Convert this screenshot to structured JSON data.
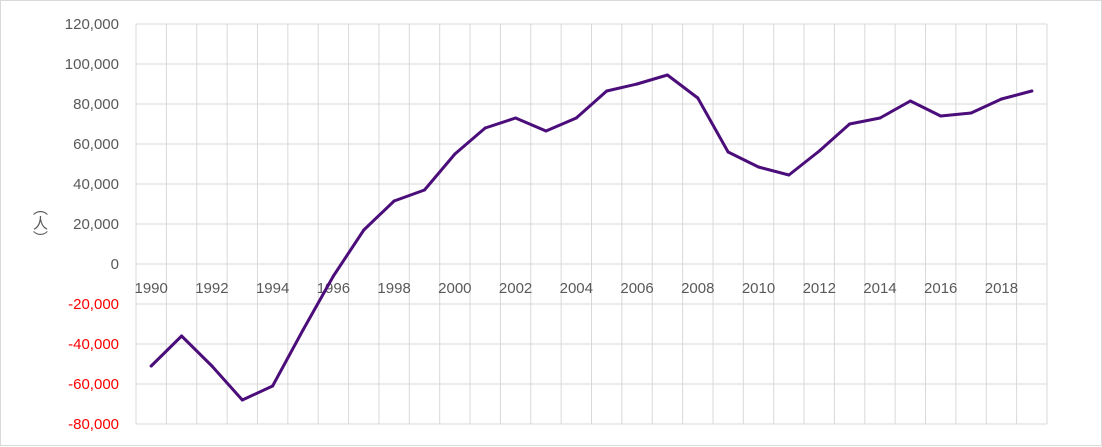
{
  "chart_data": {
    "type": "line",
    "title": "",
    "xlabel": "",
    "ylabel": "（人）",
    "x": [
      1990,
      1991,
      1992,
      1993,
      1994,
      1995,
      1996,
      1997,
      1998,
      1999,
      2000,
      2001,
      2002,
      2003,
      2004,
      2005,
      2006,
      2007,
      2008,
      2009,
      2010,
      2011,
      2012,
      2013,
      2014,
      2015,
      2016,
      2017,
      2018,
      2019
    ],
    "series": [
      {
        "values": [
          -51000,
          -36000,
          -51000,
          -68000,
          -61000,
          -33000,
          -6000,
          17000,
          31500,
          37000,
          55000,
          68000,
          73000,
          66500,
          73000,
          86500,
          90000,
          94500,
          83000,
          56000,
          48500,
          44500,
          56500,
          70000,
          73000,
          81500,
          74000,
          75500,
          82500,
          86500
        ],
        "color": "#4b0d7a"
      }
    ],
    "ylim": [
      -80000,
      120000
    ],
    "yticks": [
      120000,
      100000,
      80000,
      60000,
      40000,
      20000,
      0,
      -20000,
      -40000,
      -60000,
      -80000
    ],
    "ytick_labels": [
      "120,000",
      "100,000",
      "80,000",
      "60,000",
      "40,000",
      "20,000",
      "0",
      "-20,000",
      "-40,000",
      "-60,000",
      "-80,000"
    ],
    "xtick_labels": [
      "1990",
      "1992",
      "1994",
      "1996",
      "1998",
      "2000",
      "2002",
      "2004",
      "2006",
      "2008",
      "2010",
      "2012",
      "2014",
      "2016",
      "2018"
    ],
    "grid": true,
    "colors": {
      "line": "#4b0d7a",
      "positive_tick": "#595959",
      "negative_tick": "#ff0000",
      "grid": "#d9d9d9"
    }
  }
}
